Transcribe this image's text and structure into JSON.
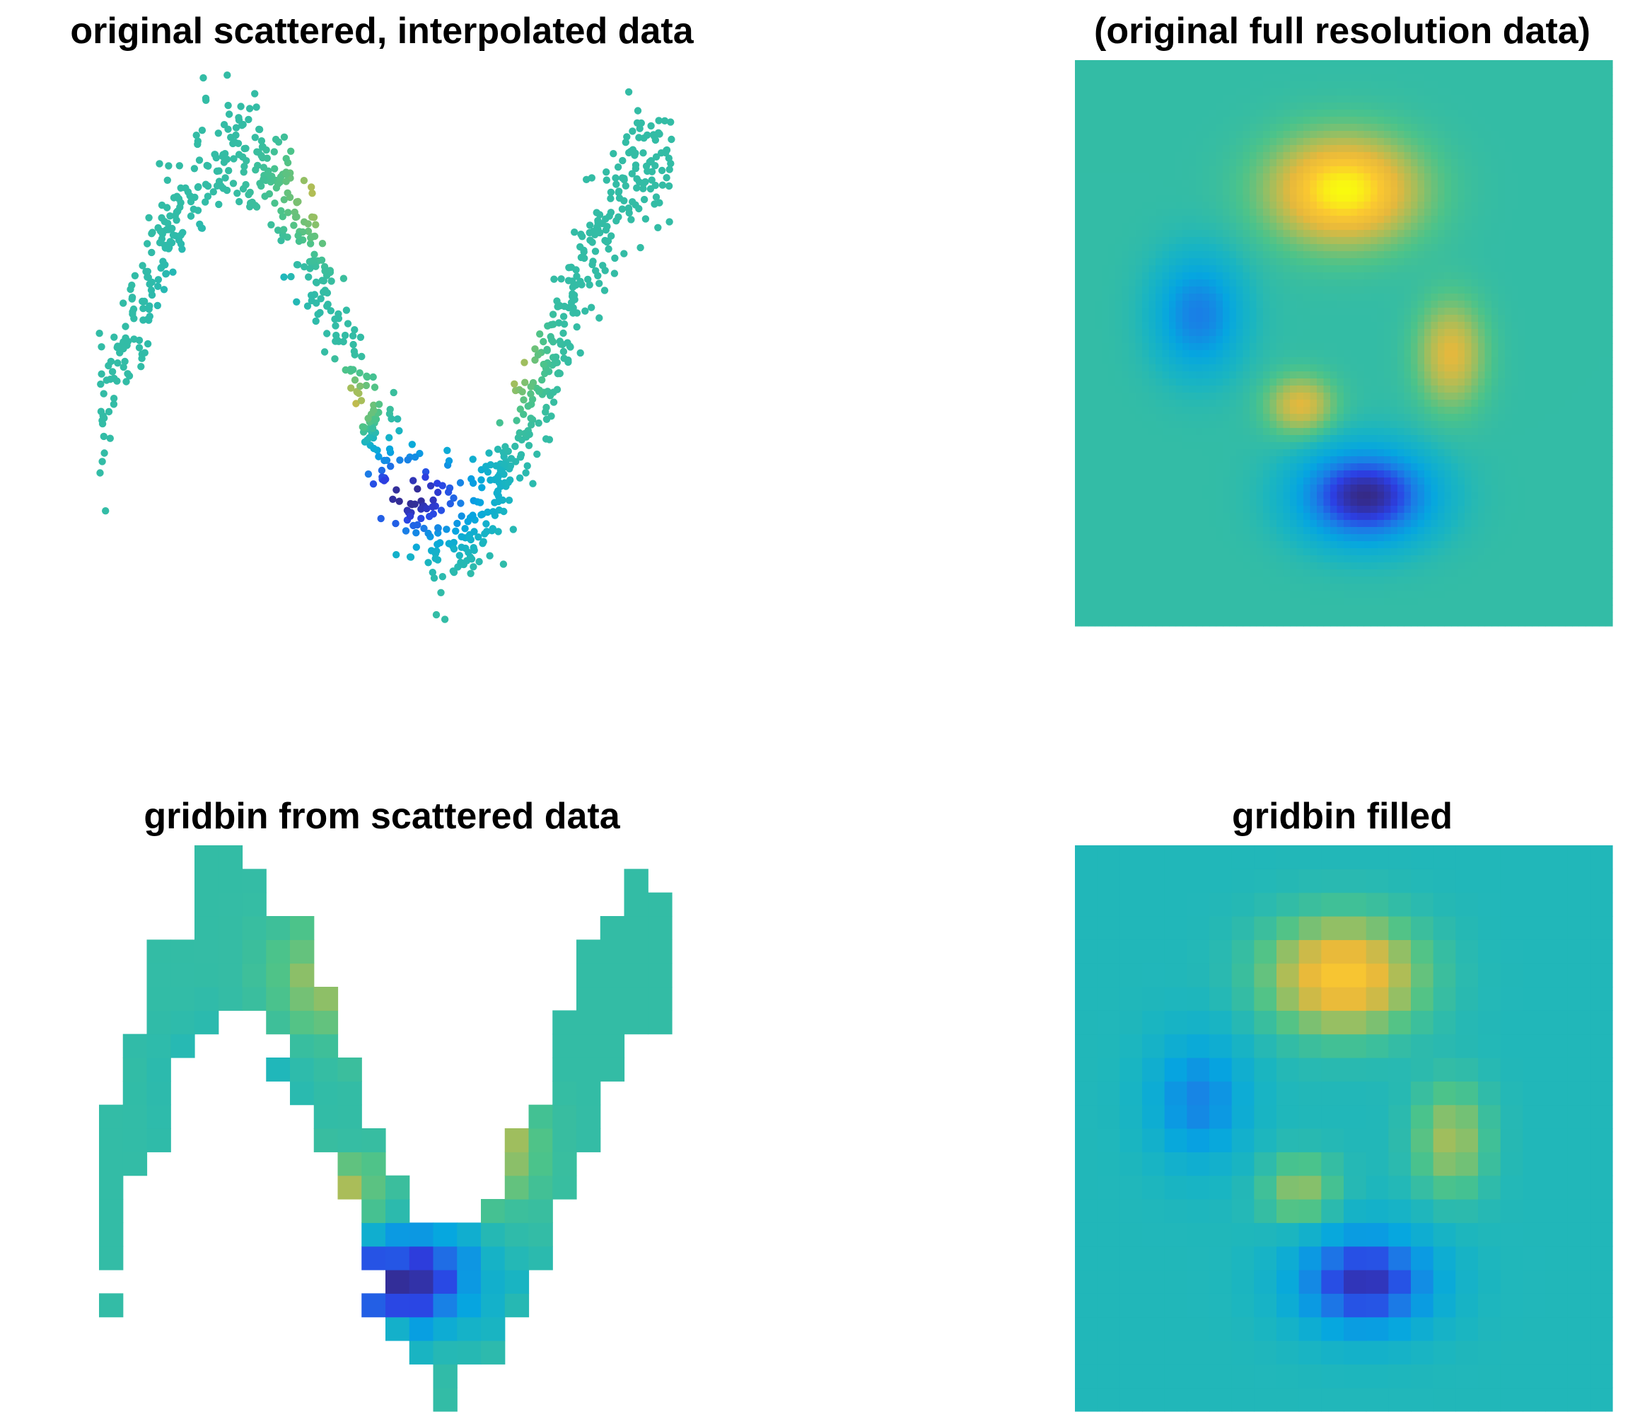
{
  "figure": {
    "colormap": "parula",
    "colormap_stops": [
      "#352a87",
      "#2c3fe4",
      "#1a7ee6",
      "#05a6e0",
      "#1ab5c1",
      "#4cc38a",
      "#a3be5c",
      "#e6b83c",
      "#fbc830",
      "#f9fb0e"
    ]
  },
  "chart_data": [
    {
      "id": "scatter",
      "type": "scatter",
      "title": "original scattered, interpolated data",
      "xlim": [
        0,
        1
      ],
      "ylim": [
        0,
        1
      ],
      "axes_visible": false,
      "grid": false,
      "clim": [
        -1,
        1
      ],
      "point_count": 900,
      "description": "points clustered along a sinusoidal band, colored by interpolated value"
    },
    {
      "id": "field",
      "type": "heatmap",
      "title": "(original full resolution data)",
      "xlim": [
        0,
        1
      ],
      "ylim": [
        0,
        1
      ],
      "axes_visible": false,
      "grid": false,
      "clim": [
        -1,
        1
      ],
      "baseline": 0,
      "bumps": [
        {
          "x": 0.5,
          "y": 0.77,
          "sx": 0.13,
          "sy": 0.09,
          "amp": 1.0
        },
        {
          "x": 0.7,
          "y": 0.48,
          "sx": 0.06,
          "sy": 0.09,
          "amp": 0.55
        },
        {
          "x": 0.42,
          "y": 0.39,
          "sx": 0.06,
          "sy": 0.05,
          "amp": 0.55
        },
        {
          "x": 0.23,
          "y": 0.55,
          "sx": 0.08,
          "sy": 0.1,
          "amp": -0.55
        },
        {
          "x": 0.54,
          "y": 0.23,
          "sx": 0.12,
          "sy": 0.08,
          "amp": -1.0
        }
      ]
    },
    {
      "id": "gridbin",
      "type": "heatmap",
      "title": "gridbin from scattered data",
      "bins": [
        24,
        24
      ],
      "axes_visible": false,
      "empty_bins": "blank",
      "clim": [
        -1,
        1
      ]
    },
    {
      "id": "filled",
      "type": "heatmap",
      "title": "gridbin filled",
      "bins": [
        24,
        24
      ],
      "axes_visible": false,
      "clim": [
        -1,
        1
      ]
    }
  ]
}
